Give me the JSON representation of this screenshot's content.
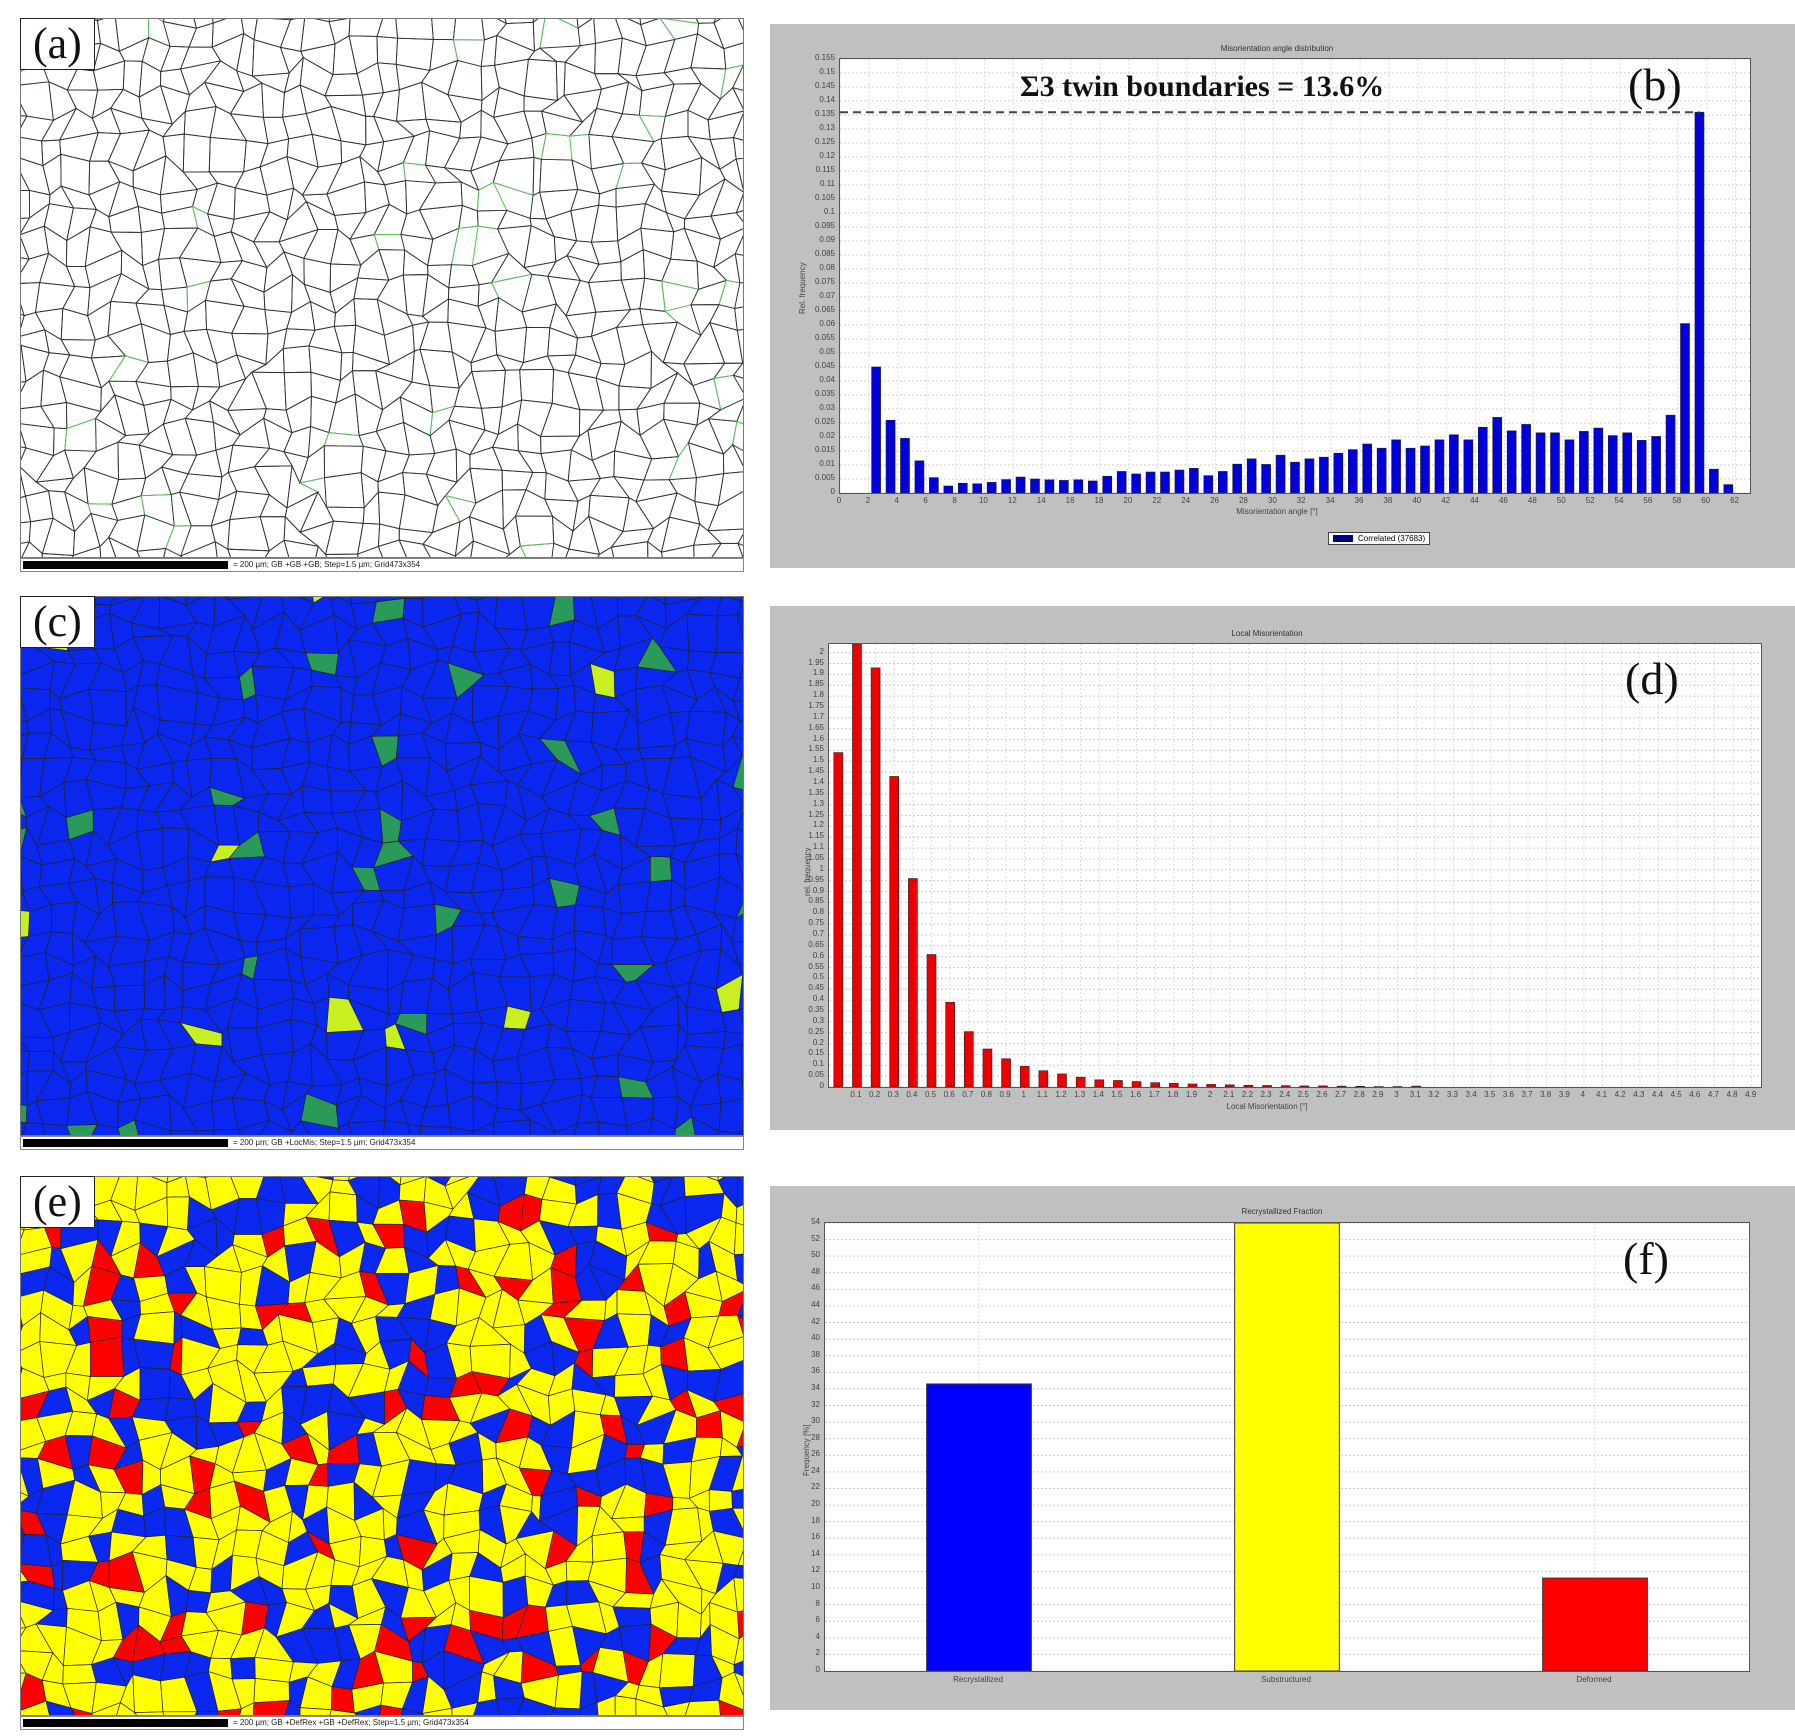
{
  "panels": {
    "a": {
      "label": "(a)",
      "scale_text": "= 200 µm; GB +GB +GB; Step=1.5 µm; Grid473x354"
    },
    "c": {
      "label": "(c)",
      "scale_text": "= 200 µm; GB +LocMis; Step=1.5 µm; Grid473x354"
    },
    "e": {
      "label": "(e)",
      "scale_text": "= 200 µm; GB +DefRex +GB +DefRex; Step=1.5 µm; Grid473x354"
    },
    "b": {
      "label": "(b)",
      "annotation": "Σ3 twin boundaries = 13.6%"
    },
    "d": {
      "label": "(d)"
    },
    "f": {
      "label": "(f)"
    }
  },
  "colors": {
    "frame_gray": "#c0c0c0",
    "bar_blue": "#0000dd",
    "bar_red": "#ee0000",
    "bar_yellow": "#ffff00",
    "map_blue": "#0a28f0",
    "map_yellow": "#ffff00",
    "map_red": "#ff0000"
  },
  "chart_data": [
    {
      "id": "b",
      "type": "bar",
      "title": "Misorientation angle distribution",
      "xlabel": "Misorientation angle [°]",
      "ylabel": "Rel. frequency",
      "legend": [
        "Correlated (37683)"
      ],
      "x_ticks": [
        0,
        2,
        4,
        6,
        8,
        10,
        12,
        14,
        16,
        18,
        20,
        22,
        24,
        26,
        28,
        30,
        32,
        34,
        36,
        38,
        40,
        42,
        44,
        46,
        48,
        50,
        52,
        54,
        56,
        58,
        60,
        62
      ],
      "y_ticks": [
        0,
        0.005,
        0.01,
        0.015,
        0.02,
        0.025,
        0.03,
        0.035,
        0.04,
        0.045,
        0.05,
        0.055,
        0.06,
        0.065,
        0.07,
        0.075,
        0.08,
        0.085,
        0.09,
        0.095,
        0.1,
        0.105,
        0.11,
        0.115,
        0.12,
        0.125,
        0.13,
        0.135,
        0.14,
        0.145,
        0.15,
        0.155
      ],
      "ylim": [
        0,
        0.155
      ],
      "xlim": [
        0,
        63
      ],
      "grid": true,
      "annotation": {
        "text": "Σ3 twin boundaries = 13.6%",
        "y": 0.136,
        "style": "dashed-line"
      },
      "x": [
        2.5,
        3.5,
        4.5,
        5.5,
        6.5,
        7.5,
        8.5,
        9.5,
        10.5,
        11.5,
        12.5,
        13.5,
        14.5,
        15.5,
        16.5,
        17.5,
        18.5,
        19.5,
        20.5,
        21.5,
        22.5,
        23.5,
        24.5,
        25.5,
        26.5,
        27.5,
        28.5,
        29.5,
        30.5,
        31.5,
        32.5,
        33.5,
        34.5,
        35.5,
        36.5,
        37.5,
        38.5,
        39.5,
        40.5,
        41.5,
        42.5,
        43.5,
        44.5,
        45.5,
        46.5,
        47.5,
        48.5,
        49.5,
        50.5,
        51.5,
        52.5,
        53.5,
        54.5,
        55.5,
        56.5,
        57.5,
        58.5,
        59.5,
        60.5,
        61.5
      ],
      "values": [
        0.045,
        0.026,
        0.0195,
        0.0115,
        0.0055,
        0.0025,
        0.0035,
        0.0033,
        0.0038,
        0.0048,
        0.0057,
        0.005,
        0.0047,
        0.0045,
        0.0047,
        0.0043,
        0.006,
        0.0077,
        0.0068,
        0.0075,
        0.0075,
        0.0082,
        0.0088,
        0.0062,
        0.0077,
        0.0103,
        0.0122,
        0.0102,
        0.0135,
        0.011,
        0.0122,
        0.0128,
        0.0142,
        0.0155,
        0.0175,
        0.016,
        0.019,
        0.016,
        0.0168,
        0.019,
        0.0208,
        0.019,
        0.0235,
        0.027,
        0.0222,
        0.0245,
        0.0215,
        0.0215,
        0.019,
        0.022,
        0.0232,
        0.0205,
        0.0215,
        0.0188,
        0.0202,
        0.0278,
        0.0605,
        0.136,
        0.0085,
        0.003
      ]
    },
    {
      "id": "d",
      "type": "bar",
      "title": "Local Misorientation",
      "xlabel": "Local Misorientation [°]",
      "ylabel": "rel. frequency",
      "x_ticks": [
        0.1,
        0.2,
        0.3,
        0.4,
        0.5,
        0.6,
        0.7,
        0.8,
        0.9,
        1,
        1.1,
        1.2,
        1.3,
        1.4,
        1.5,
        1.6,
        1.7,
        1.8,
        1.9,
        2,
        2.1,
        2.2,
        2.3,
        2.4,
        2.5,
        2.6,
        2.7,
        2.8,
        2.9,
        3,
        3.1,
        3.2,
        3.3,
        3.4,
        3.5,
        3.6,
        3.7,
        3.8,
        3.9,
        4,
        4.1,
        4.2,
        4.3,
        4.4,
        4.5,
        4.6,
        4.7,
        4.8,
        4.9
      ],
      "y_ticks": [
        0,
        0.05,
        0.1,
        0.15,
        0.2,
        0.25,
        0.3,
        0.35,
        0.4,
        0.45,
        0.5,
        0.55,
        0.6,
        0.65,
        0.7,
        0.75,
        0.8,
        0.85,
        0.9,
        0.95,
        1,
        1.05,
        1.1,
        1.15,
        1.2,
        1.25,
        1.3,
        1.35,
        1.4,
        1.45,
        1.5,
        1.55,
        1.6,
        1.65,
        1.7,
        1.75,
        1.8,
        1.85,
        1.9,
        1.95,
        2
      ],
      "ylim": [
        0,
        2.04
      ],
      "grid": true,
      "x": [
        0.05,
        0.15,
        0.25,
        0.35,
        0.45,
        0.55,
        0.65,
        0.75,
        0.85,
        0.95,
        1.05,
        1.15,
        1.25,
        1.35,
        1.45,
        1.55,
        1.65,
        1.75,
        1.85,
        1.95,
        2.05,
        2.15,
        2.25,
        2.35,
        2.45,
        2.55,
        2.65,
        2.75,
        2.85,
        2.95,
        3.05,
        3.15
      ],
      "values": [
        1.54,
        2.04,
        1.93,
        1.43,
        0.96,
        0.61,
        0.39,
        0.255,
        0.175,
        0.13,
        0.095,
        0.075,
        0.06,
        0.045,
        0.033,
        0.03,
        0.025,
        0.02,
        0.017,
        0.014,
        0.012,
        0.01,
        0.008,
        0.007,
        0.006,
        0.005,
        0.005,
        0.004,
        0.003,
        0.002,
        0.002,
        0.004
      ]
    },
    {
      "id": "f",
      "type": "bar",
      "title": "Recrystallized Fraction",
      "xlabel": "",
      "ylabel": "Frequency [%]",
      "categories": [
        "Recrystallized",
        "Substructured",
        "Deformed"
      ],
      "values": [
        34.6,
        54.0,
        11.2
      ],
      "bar_colors": [
        "#0000ff",
        "#ffff00",
        "#ff0000"
      ],
      "y_ticks": [
        0,
        2,
        4,
        6,
        8,
        10,
        12,
        14,
        16,
        18,
        20,
        22,
        24,
        26,
        28,
        30,
        32,
        34,
        36,
        38,
        40,
        42,
        44,
        46,
        48,
        50,
        52,
        54
      ],
      "ylim": [
        0,
        54
      ],
      "grid": true
    }
  ]
}
